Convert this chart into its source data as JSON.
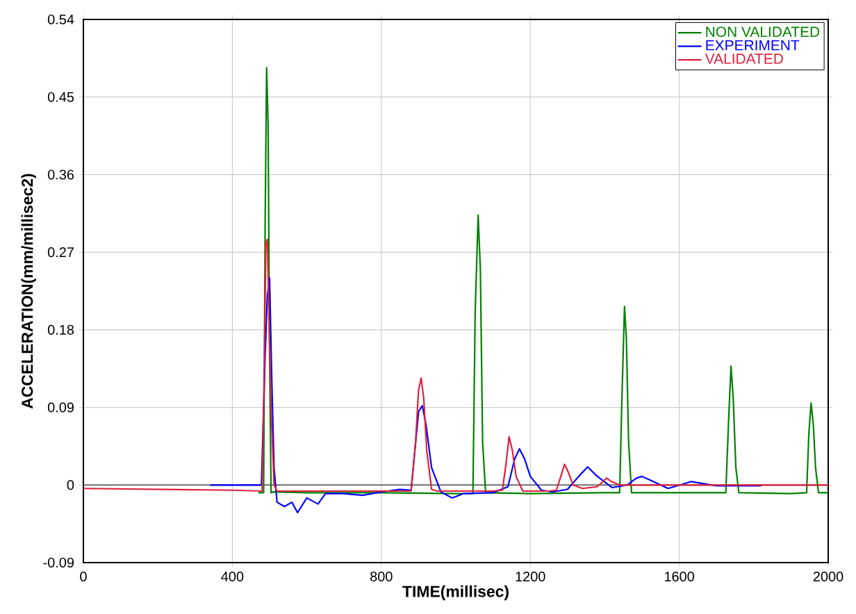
{
  "chart_data": {
    "type": "line",
    "xlabel": "TIME(millisec)",
    "ylabel": "ACCELERATION(mm/millisec2)",
    "xlim": [
      0,
      2000
    ],
    "xticks": [
      0,
      400,
      800,
      1200,
      1600,
      2000
    ],
    "ylim": [
      -0.09,
      0.54
    ],
    "yticks": [
      -0.09,
      0,
      0.09,
      0.18,
      0.27,
      0.36,
      0.45,
      0.54
    ],
    "grid": true,
    "legend": "top right",
    "line_style": "solid",
    "ref_lines": [
      {
        "axis": "y",
        "value": 0,
        "color": "#707070"
      }
    ],
    "series": [
      {
        "name": "NON VALIDATED",
        "color": "#008000",
        "x": [
          470,
          484,
          488,
          492,
          496,
          500,
          504,
          510,
          600,
          800,
          1000,
          1046,
          1052,
          1060,
          1066,
          1072,
          1080,
          1200,
          1400,
          1440,
          1446,
          1453,
          1458,
          1464,
          1472,
          1600,
          1725,
          1733,
          1739,
          1745,
          1752,
          1760,
          1900,
          1942,
          1948,
          1954,
          1960,
          1966,
          1974,
          2000
        ],
        "values": [
          -0.009,
          -0.009,
          0.3,
          0.484,
          0.42,
          0.15,
          -0.009,
          -0.008,
          -0.009,
          -0.009,
          -0.01,
          -0.01,
          0.2,
          0.313,
          0.25,
          0.05,
          -0.009,
          -0.01,
          -0.009,
          -0.009,
          0.1,
          0.207,
          0.17,
          0.05,
          -0.009,
          -0.009,
          -0.009,
          0.08,
          0.138,
          0.1,
          0.02,
          -0.009,
          -0.01,
          -0.009,
          0.06,
          0.095,
          0.07,
          0.02,
          -0.009,
          -0.009
        ]
      },
      {
        "name": "EXPERIMENT",
        "color": "#0000ff",
        "x": [
          340,
          400,
          478,
          482,
          488,
          494,
          500,
          506,
          512,
          520,
          540,
          560,
          575,
          600,
          630,
          650,
          700,
          750,
          800,
          850,
          880,
          890,
          900,
          910,
          920,
          935,
          960,
          990,
          1020,
          1100,
          1140,
          1158,
          1171,
          1185,
          1200,
          1230,
          1260,
          1300,
          1330,
          1354,
          1380,
          1420,
          1460,
          1485,
          1500,
          1520,
          1570,
          1610,
          1632,
          1660,
          1700,
          1760,
          1820
        ],
        "values": [
          0.0,
          0.0,
          0.0,
          null,
          0.15,
          0.22,
          0.24,
          0.12,
          0.02,
          -0.02,
          -0.025,
          -0.02,
          -0.032,
          -0.015,
          -0.022,
          -0.01,
          -0.01,
          -0.012,
          -0.008,
          -0.005,
          -0.006,
          null,
          0.085,
          0.092,
          0.07,
          0.02,
          -0.008,
          -0.015,
          -0.01,
          -0.009,
          -0.002,
          0.03,
          0.042,
          0.03,
          0.01,
          -0.006,
          -0.008,
          -0.005,
          0.01,
          0.021,
          0.01,
          -0.003,
          0.0,
          0.008,
          0.01,
          0.006,
          -0.004,
          0.001,
          0.004,
          0.002,
          -0.001,
          -0.001,
          -0.001
        ]
      },
      {
        "name": "VALIDATED",
        "color": "#e0203c",
        "x": [
          0,
          200,
          400,
          480,
          486,
          490,
          494,
          498,
          504,
          512,
          520,
          600,
          800,
          880,
          892,
          900,
          907,
          914,
          922,
          935,
          950,
          1000,
          1100,
          1125,
          1135,
          1143,
          1152,
          1162,
          1180,
          1250,
          1270,
          1282,
          1292,
          1302,
          1315,
          1340,
          1380,
          1395,
          1405,
          1418,
          1440,
          1600,
          1800,
          2000
        ],
        "values": [
          -0.004,
          -0.005,
          -0.006,
          -0.007,
          0.14,
          0.28,
          0.285,
          0.2,
          0.09,
          0.0,
          -0.007,
          -0.007,
          -0.007,
          -0.007,
          0.05,
          0.11,
          0.124,
          0.1,
          0.04,
          -0.005,
          -0.007,
          -0.007,
          -0.007,
          -0.006,
          0.025,
          0.056,
          0.04,
          0.01,
          -0.007,
          -0.007,
          -0.006,
          0.01,
          0.024,
          0.015,
          0.0,
          -0.004,
          -0.002,
          0.004,
          0.008,
          0.004,
          0.0,
          0.0,
          0.0,
          0.0
        ]
      }
    ]
  }
}
